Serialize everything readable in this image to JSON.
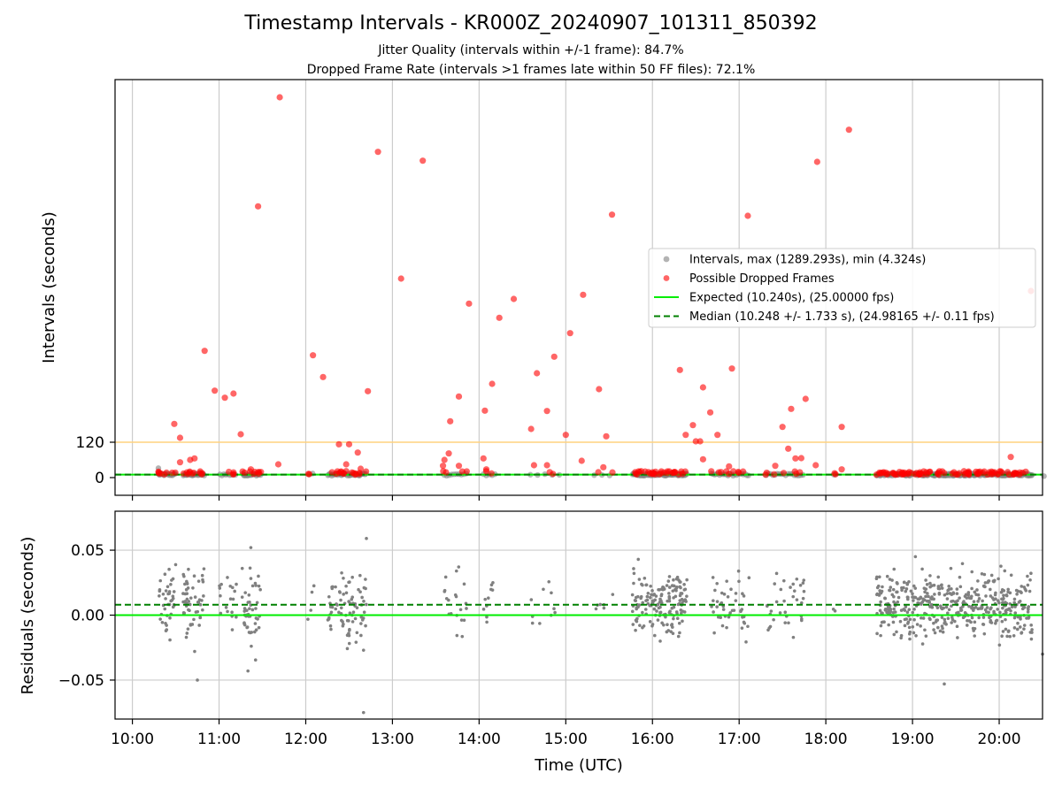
{
  "title": "Timestamp Intervals - KR000Z_20240907_101311_850392",
  "subtitle1": "Jitter Quality (intervals within +/-1 frame): 84.7%",
  "subtitle2": "Dropped Frame Rate (intervals >1 frames late within 50 FF files): 72.1%",
  "colors": {
    "intervals": "#808080",
    "dropped": "#ff0000",
    "expected": "#00ee00",
    "median": "#008000",
    "threshold": "#ffd27f",
    "grid": "#cccccc"
  },
  "chart_data": [
    {
      "type": "scatter",
      "panel": "top",
      "ylabel": "Intervals (seconds)",
      "xlim": [
        "09:48",
        "20:30"
      ],
      "ylim": [
        -60,
        1350
      ],
      "yticks": [
        0,
        120
      ],
      "ytick_labels": [
        "0",
        "120"
      ],
      "threshold_line": 120,
      "grid": "vertical",
      "legend_position": "right",
      "legend": [
        {
          "key": "intervals",
          "label": "Intervals, max (1289.293s), min (4.324s)"
        },
        {
          "key": "dropped",
          "label": "Possible Dropped Frames"
        },
        {
          "key": "expected",
          "label": "Expected (10.240s), (25.00000 fps)"
        },
        {
          "key": "median",
          "label": "Median (10.248 +/- 1.733 s), (24.98165 +/- 0.11 fps)"
        }
      ],
      "expected_value": 10.24,
      "median_value": 10.248,
      "dropped_frames": [
        {
          "t": "11:42",
          "y": 1290
        },
        {
          "t": "12:50",
          "y": 1105
        },
        {
          "t": "13:21",
          "y": 1075
        },
        {
          "t": "18:16",
          "y": 1180
        },
        {
          "t": "17:54",
          "y": 1071
        },
        {
          "t": "11:27",
          "y": 920
        },
        {
          "t": "15:32",
          "y": 892
        },
        {
          "t": "17:06",
          "y": 888
        },
        {
          "t": "13:06",
          "y": 675
        },
        {
          "t": "20:22",
          "y": 633
        },
        {
          "t": "15:12",
          "y": 620
        },
        {
          "t": "14:24",
          "y": 606
        },
        {
          "t": "13:53",
          "y": 590
        },
        {
          "t": "14:14",
          "y": 542
        },
        {
          "t": "15:03",
          "y": 490
        },
        {
          "t": "10:50",
          "y": 430
        },
        {
          "t": "12:05",
          "y": 415
        },
        {
          "t": "14:52",
          "y": 410
        },
        {
          "t": "16:19",
          "y": 365
        },
        {
          "t": "16:55",
          "y": 370
        },
        {
          "t": "12:12",
          "y": 341
        },
        {
          "t": "14:40",
          "y": 354
        },
        {
          "t": "14:09",
          "y": 318
        },
        {
          "t": "16:35",
          "y": 306
        },
        {
          "t": "10:57",
          "y": 295
        },
        {
          "t": "11:10",
          "y": 285
        },
        {
          "t": "12:43",
          "y": 293
        },
        {
          "t": "15:23",
          "y": 300
        },
        {
          "t": "17:46",
          "y": 267
        },
        {
          "t": "11:04",
          "y": 271
        },
        {
          "t": "13:46",
          "y": 275
        },
        {
          "t": "17:36",
          "y": 233
        },
        {
          "t": "14:04",
          "y": 227
        },
        {
          "t": "14:47",
          "y": 226
        },
        {
          "t": "16:40",
          "y": 221
        },
        {
          "t": "13:40",
          "y": 191
        },
        {
          "t": "16:28",
          "y": 178
        },
        {
          "t": "17:30",
          "y": 172
        },
        {
          "t": "14:36",
          "y": 165
        },
        {
          "t": "18:11",
          "y": 172
        },
        {
          "t": "10:29",
          "y": 182
        },
        {
          "t": "11:15",
          "y": 147
        },
        {
          "t": "15:00",
          "y": 145
        },
        {
          "t": "15:28",
          "y": 140
        },
        {
          "t": "16:23",
          "y": 145
        },
        {
          "t": "16:45",
          "y": 145
        },
        {
          "t": "10:33",
          "y": 135
        },
        {
          "t": "16:30",
          "y": 123
        },
        {
          "t": "16:33",
          "y": 123
        },
        {
          "t": "12:23",
          "y": 113
        },
        {
          "t": "12:30",
          "y": 113
        },
        {
          "t": "17:34",
          "y": 98
        },
        {
          "t": "12:36",
          "y": 85
        },
        {
          "t": "13:39",
          "y": 82
        },
        {
          "t": "10:33",
          "y": 52
        },
        {
          "t": "10:40",
          "y": 60
        },
        {
          "t": "10:43",
          "y": 65
        },
        {
          "t": "13:36",
          "y": 60
        },
        {
          "t": "14:03",
          "y": 65
        },
        {
          "t": "15:11",
          "y": 57
        },
        {
          "t": "16:35",
          "y": 62
        },
        {
          "t": "17:39",
          "y": 65
        },
        {
          "t": "17:43",
          "y": 66
        },
        {
          "t": "20:08",
          "y": 70
        },
        {
          "t": "11:41",
          "y": 45
        },
        {
          "t": "12:28",
          "y": 45
        },
        {
          "t": "13:35",
          "y": 40
        },
        {
          "t": "13:46",
          "y": 40
        },
        {
          "t": "14:38",
          "y": 42
        },
        {
          "t": "14:47",
          "y": 42
        },
        {
          "t": "15:26",
          "y": 35
        },
        {
          "t": "17:25",
          "y": 40
        },
        {
          "t": "17:53",
          "y": 42
        },
        {
          "t": "16:53",
          "y": 38
        },
        {
          "t": "18:11",
          "y": 28
        },
        {
          "t": "11:22",
          "y": 28
        },
        {
          "t": "12:38",
          "y": 30
        },
        {
          "t": "14:05",
          "y": 28
        }
      ]
    },
    {
      "type": "scatter",
      "panel": "bottom",
      "xlabel": "Time (UTC)",
      "ylabel": "Residuals (seconds)",
      "xlim": [
        "09:48",
        "20:30"
      ],
      "ylim": [
        -0.08,
        0.08
      ],
      "xticks": [
        "10:00",
        "11:00",
        "12:00",
        "13:00",
        "14:00",
        "15:00",
        "16:00",
        "17:00",
        "18:00",
        "19:00",
        "20:00"
      ],
      "yticks": [
        0.05,
        0.0,
        -0.05
      ],
      "ytick_labels": [
        "0.05",
        "0.00",
        "−0.05"
      ],
      "grid": "both",
      "expected_residual": 0.0,
      "median_residual": 0.008,
      "residual_clusters": [
        {
          "start": "10:18",
          "end": "10:30",
          "center": 0.01,
          "spread": 0.016,
          "count": 40
        },
        {
          "start": "10:35",
          "end": "10:50",
          "center": 0.01,
          "spread": 0.016,
          "count": 55
        },
        {
          "start": "11:00",
          "end": "11:12",
          "center": 0.008,
          "spread": 0.015,
          "count": 18
        },
        {
          "start": "11:16",
          "end": "11:29",
          "center": 0.006,
          "spread": 0.02,
          "count": 45
        },
        {
          "start": "12:01",
          "end": "12:06",
          "center": 0.005,
          "spread": 0.012,
          "count": 4
        },
        {
          "start": "12:15",
          "end": "12:42",
          "center": 0.006,
          "spread": 0.018,
          "count": 80
        },
        {
          "start": "13:35",
          "end": "13:52",
          "center": 0.008,
          "spread": 0.015,
          "count": 20
        },
        {
          "start": "14:02",
          "end": "14:12",
          "center": 0.008,
          "spread": 0.015,
          "count": 10
        },
        {
          "start": "14:33",
          "end": "14:58",
          "center": 0.006,
          "spread": 0.012,
          "count": 10
        },
        {
          "start": "15:17",
          "end": "15:33",
          "center": 0.006,
          "spread": 0.012,
          "count": 6
        },
        {
          "start": "15:46",
          "end": "16:24",
          "center": 0.008,
          "spread": 0.015,
          "count": 160
        },
        {
          "start": "16:40",
          "end": "17:07",
          "center": 0.008,
          "spread": 0.016,
          "count": 45
        },
        {
          "start": "17:18",
          "end": "17:45",
          "center": 0.008,
          "spread": 0.015,
          "count": 35
        },
        {
          "start": "18:05",
          "end": "18:07",
          "center": 0.002,
          "spread": 0.004,
          "count": 2
        },
        {
          "start": "18:35",
          "end": "20:23",
          "center": 0.008,
          "spread": 0.015,
          "count": 450
        }
      ],
      "residual_outliers": [
        {
          "t": "11:22",
          "y": 0.052
        },
        {
          "t": "12:42",
          "y": 0.059
        },
        {
          "t": "10:45",
          "y": -0.05
        },
        {
          "t": "11:20",
          "y": -0.043
        },
        {
          "t": "12:40",
          "y": -0.075
        },
        {
          "t": "19:22",
          "y": -0.053
        },
        {
          "t": "20:30",
          "y": -0.03
        },
        {
          "t": "12:40",
          "y": -0.027
        },
        {
          "t": "19:02",
          "y": 0.045
        }
      ]
    }
  ]
}
